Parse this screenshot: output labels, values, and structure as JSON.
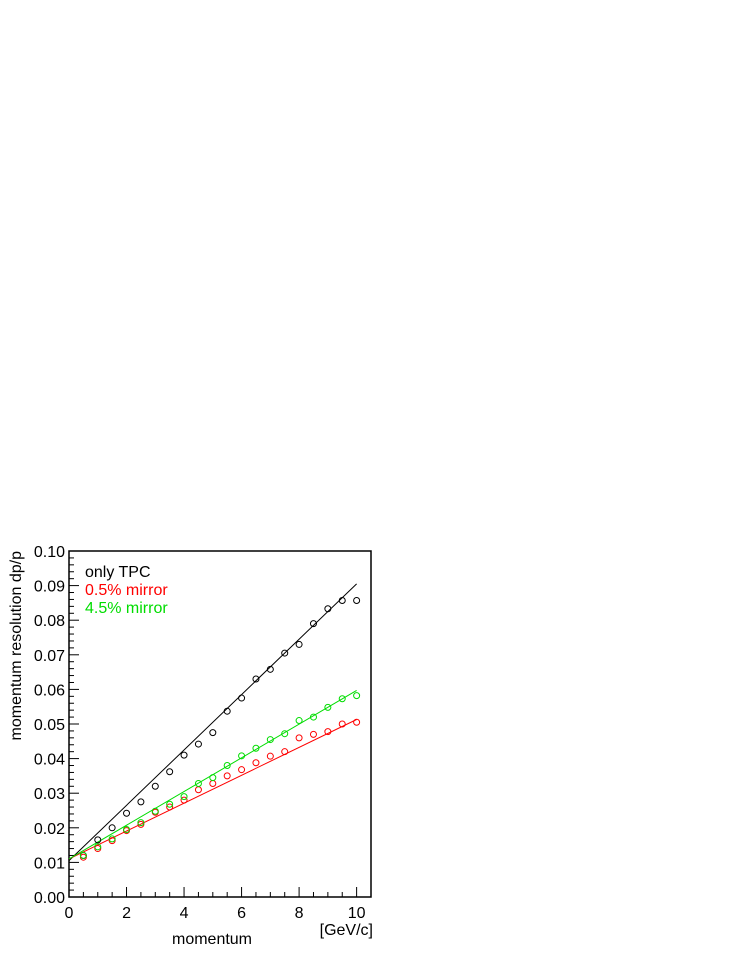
{
  "chart_data": {
    "type": "scatter",
    "title": "",
    "xlabel": "momentum",
    "xunit": "[GeV/c]",
    "ylabel": "momentum resolution dp/p",
    "xlim": [
      0,
      10.5
    ],
    "ylim": [
      0,
      0.1
    ],
    "x_ticks": [
      "0",
      "2",
      "4",
      "6",
      "8",
      "10"
    ],
    "y_ticks": [
      "0.00",
      "0.01",
      "0.02",
      "0.03",
      "0.04",
      "0.05",
      "0.06",
      "0.07",
      "0.08",
      "0.09",
      "0.10"
    ],
    "grid": false,
    "legend": {
      "placement": "top-left",
      "entries": [
        "only TPC",
        "0.5% mirror",
        "4.5% mirror"
      ]
    },
    "x": [
      0.5,
      1.0,
      1.5,
      2.0,
      2.5,
      3.0,
      3.5,
      4.0,
      4.5,
      5.0,
      5.5,
      6.0,
      6.5,
      7.0,
      7.5,
      8.0,
      8.5,
      9.0,
      9.5,
      10.0
    ],
    "series": [
      {
        "name": "only TPC",
        "color": "#000000",
        "values": [
          0.012,
          0.0165,
          0.02,
          0.0242,
          0.0275,
          0.032,
          0.0362,
          0.041,
          0.0442,
          0.0475,
          0.0537,
          0.0575,
          0.063,
          0.0658,
          0.0705,
          0.073,
          0.079,
          0.0833,
          0.0857,
          0.0857
        ],
        "fit": [
          0.0105,
          0.0905
        ]
      },
      {
        "name": "0.5% mirror",
        "color": "#ff0000",
        "values": [
          0.0115,
          0.014,
          0.0163,
          0.0192,
          0.021,
          0.0245,
          0.026,
          0.028,
          0.031,
          0.0328,
          0.035,
          0.0368,
          0.0388,
          0.0407,
          0.042,
          0.046,
          0.047,
          0.0478,
          0.05,
          0.0505
        ],
        "fit": [
          0.011,
          0.0513
        ]
      },
      {
        "name": "4.5% mirror",
        "color": "#00dd00",
        "values": [
          0.012,
          0.0145,
          0.0168,
          0.0195,
          0.0215,
          0.0248,
          0.0268,
          0.029,
          0.0328,
          0.0345,
          0.038,
          0.0408,
          0.043,
          0.0455,
          0.0472,
          0.051,
          0.052,
          0.0548,
          0.0573,
          0.0582
        ],
        "fit": [
          0.011,
          0.0597
        ]
      }
    ]
  }
}
